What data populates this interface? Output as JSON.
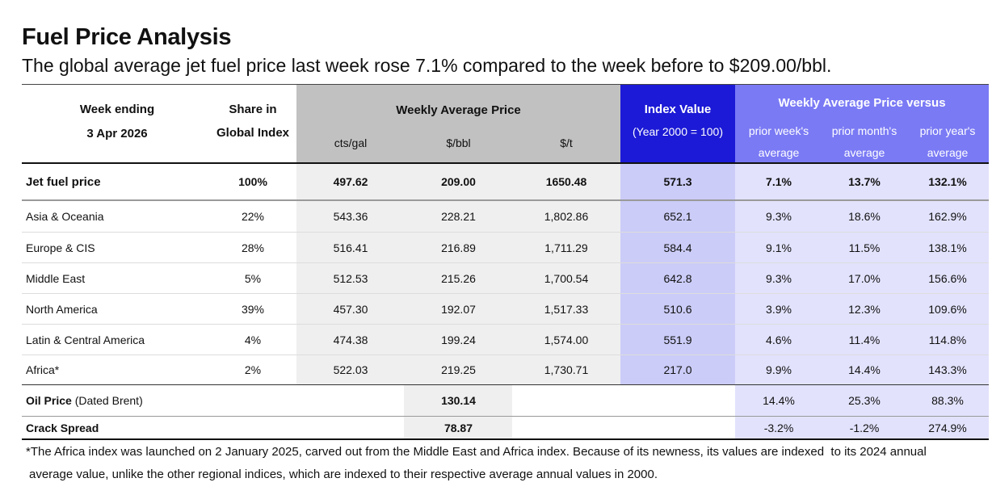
{
  "title": "Fuel Price Analysis",
  "subtitle": "The global average jet fuel price last week rose 7.1% compared to the week before to $209.00/bbl.",
  "header": {
    "week_ending_label": "Week ending",
    "week_ending_date": "3 Apr 2026",
    "share_line1": "Share in",
    "share_line2": "Global Index",
    "weekly_avg_price": "Weekly Average Price",
    "unit_cts_gal": "cts/gal",
    "unit_bbl": "$/bbl",
    "unit_t": "$/t",
    "index_value": "Index Value",
    "index_base": "(Year 2000 = 100)",
    "versus": "Weekly Average Price versus",
    "prior_week_1": "prior week's",
    "prior_week_2": "average",
    "prior_month_1": "prior month's",
    "prior_month_2": "average",
    "prior_year_1": "prior year's",
    "prior_year_2": "average"
  },
  "jet": {
    "name": "Jet fuel price",
    "share": "100%",
    "cts": "497.62",
    "bbl": "209.00",
    "t": "1650.48",
    "index": "571.3",
    "week": "7.1%",
    "month": "13.7%",
    "year": "132.1%"
  },
  "regions": [
    {
      "name": "Asia & Oceania",
      "share": "22%",
      "cts": "543.36",
      "bbl": "228.21",
      "t": "1,802.86",
      "index": "652.1",
      "week": "9.3%",
      "month": "18.6%",
      "year": "162.9%"
    },
    {
      "name": "Europe & CIS",
      "share": "28%",
      "cts": "516.41",
      "bbl": "216.89",
      "t": "1,711.29",
      "index": "584.4",
      "week": "9.1%",
      "month": "11.5%",
      "year": "138.1%"
    },
    {
      "name": "Middle East",
      "share": "5%",
      "cts": "512.53",
      "bbl": "215.26",
      "t": "1,700.54",
      "index": "642.8",
      "week": "9.3%",
      "month": "17.0%",
      "year": "156.6%"
    },
    {
      "name": "North America",
      "share": "39%",
      "cts": "457.30",
      "bbl": "192.07",
      "t": "1,517.33",
      "index": "510.6",
      "week": "3.9%",
      "month": "12.3%",
      "year": "109.6%"
    },
    {
      "name": "Latin & Central America",
      "share": "4%",
      "cts": "474.38",
      "bbl": "199.24",
      "t": "1,574.00",
      "index": "551.9",
      "week": "4.6%",
      "month": "11.4%",
      "year": "114.8%"
    },
    {
      "name": "Africa*",
      "share": "2%",
      "cts": "522.03",
      "bbl": "219.25",
      "t": "1,730.71",
      "index": "217.0",
      "week": "9.9%",
      "month": "14.4%",
      "year": "143.3%"
    }
  ],
  "oil": {
    "name_bold": "Oil Price",
    "name_rest": " (Dated Brent)",
    "bbl": "130.14",
    "week": "14.4%",
    "month": "25.3%",
    "year": "88.3%"
  },
  "crack": {
    "name": "Crack Spread",
    "bbl": "78.87",
    "week": "-3.2%",
    "month": "-1.2%",
    "year": "274.9%"
  },
  "footnote_line1": "*The Africa index was launched on 2 January 2025, carved out from the Middle East and Africa index. Because of its newness, its values are indexed  to its 2024 annual",
  "footnote_line2": "average value, unlike the other regional indices, which are indexed to their respective average annual values in 2000.",
  "colors": {
    "grey_header": "#c1c1c1",
    "grey_body": "#efefef",
    "index_header": "#1c1ad6",
    "index_body": "#cbccf7",
    "versus_header": "#7a7af5",
    "versus_body": "#e2e2fd"
  }
}
